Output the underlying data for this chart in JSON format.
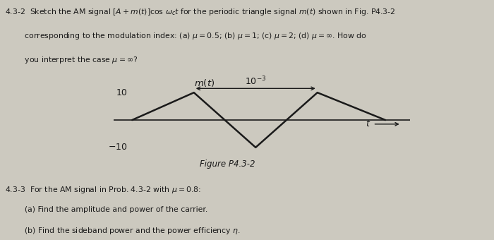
{
  "bg_color": "#ccc9bf",
  "text_color": "#1a1a1a",
  "fig_width": 7.0,
  "fig_height": 3.4,
  "line1": "4.3-2  Sketch the AM signal $[A+m(t)]\\cos\\,\\omega_c t$ for the periodic triangle signal $m(t)$ shown in Fig. P4.3-2",
  "line2": "        corresponding to the modulation index: (a) $\\mu = 0.5$; (b) $\\mu = 1$; (c) $\\mu = 2$; (d) $\\mu = \\infty$. How do",
  "line3": "        you interpret the case $\\mu = \\infty$?",
  "fig_label": "Figure P4.3-2",
  "sub1": "4.3-3  For the AM signal in Prob. 4.3-2 with $\\mu = 0.8$:",
  "sub2": "        (a) Find the amplitude and power of the carrier.",
  "sub3": "        (b) Find the sideband power and the power efficiency $\\eta$.",
  "period_label": "$10^{-3}$",
  "ylabel_10": "10",
  "ylabel_m10": "$-10$",
  "mt_label": "$m(t)$",
  "t_label": "$t$"
}
